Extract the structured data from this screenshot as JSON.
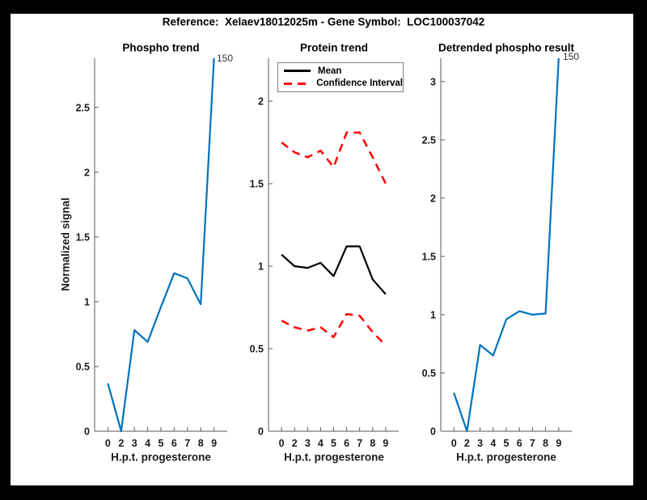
{
  "figure": {
    "title": "Reference:  Xelaev18012025m - Gene Symbol:  LOC100037042",
    "background": "#ffffff",
    "frame_color": "#000000"
  },
  "colors": {
    "line_blue": "#0072BD",
    "line_black": "#000000",
    "line_red": "#ff0000",
    "axis": "#595959",
    "tick_text": "#1a1a1a"
  },
  "chart_data": [
    {
      "type": "line",
      "title": "Phospho trend",
      "xlabel": "H.p.t. progesterone",
      "ylabel": "Normalized signal",
      "xticklabels": [
        "0",
        "2",
        "3",
        "4",
        "5",
        "6",
        "7",
        "8",
        "9"
      ],
      "yticks": [
        0,
        0.5,
        1,
        1.5,
        2,
        2.5
      ],
      "ylim": [
        0,
        2.88
      ],
      "xlim_units": [
        0,
        10
      ],
      "grid": false,
      "series": [
        {
          "name": "phospho-signal",
          "color": "#0072BD",
          "dash": false,
          "values": [
            0.37,
            0,
            0.78,
            0.69,
            0.96,
            1.22,
            1.18,
            0.98,
            150
          ]
        }
      ],
      "annotation": {
        "text": "150",
        "meaning": "true peak value at last point, clipped at axis top"
      }
    },
    {
      "type": "line",
      "title": "Protein trend",
      "xlabel": "H.p.t. progesterone",
      "ylabel": null,
      "xticklabels": [
        "0",
        "2",
        "3",
        "4",
        "5",
        "6",
        "7",
        "8",
        "9"
      ],
      "yticks": [
        0,
        0.5,
        1,
        1.5,
        2
      ],
      "ylim": [
        0,
        2.26
      ],
      "xlim_units": [
        0,
        10
      ],
      "grid": false,
      "series": [
        {
          "name": "mean",
          "color": "#000000",
          "dash": false,
          "values": [
            1.07,
            1.0,
            0.99,
            1.02,
            0.94,
            1.12,
            1.12,
            0.92,
            0.83
          ]
        },
        {
          "name": "confidence-interval-upper",
          "color": "#ff0000",
          "dash": true,
          "values": [
            1.75,
            1.69,
            1.66,
            1.7,
            1.6,
            1.81,
            1.81,
            1.66,
            1.5
          ]
        },
        {
          "name": "confidence-interval-lower",
          "color": "#ff0000",
          "dash": true,
          "values": [
            0.67,
            0.63,
            0.61,
            0.63,
            0.57,
            0.71,
            0.7,
            0.6,
            0.52
          ]
        }
      ],
      "legend": {
        "position": "northwest",
        "entries": [
          {
            "label": "Mean",
            "color": "#000000",
            "dash": false
          },
          {
            "label": "Confidence Interval",
            "color": "#ff0000",
            "dash": true
          }
        ]
      }
    },
    {
      "type": "line",
      "title": "Detrended phospho result",
      "xlabel": "H.p.t. progesterone",
      "ylabel": null,
      "xticklabels": [
        "0",
        "2",
        "3",
        "4",
        "5",
        "6",
        "7",
        "8",
        "9"
      ],
      "yticks": [
        0,
        0.5,
        1,
        1.5,
        2,
        2.5,
        3
      ],
      "ylim": [
        0,
        3.2
      ],
      "xlim_units": [
        0,
        10
      ],
      "grid": false,
      "series": [
        {
          "name": "detrended-phospho",
          "color": "#0072BD",
          "dash": false,
          "values": [
            0.33,
            0,
            0.74,
            0.65,
            0.96,
            1.03,
            1.0,
            1.01,
            150
          ]
        }
      ],
      "annotation": {
        "text": "150",
        "meaning": "true peak value at last point, clipped at axis top"
      }
    }
  ]
}
